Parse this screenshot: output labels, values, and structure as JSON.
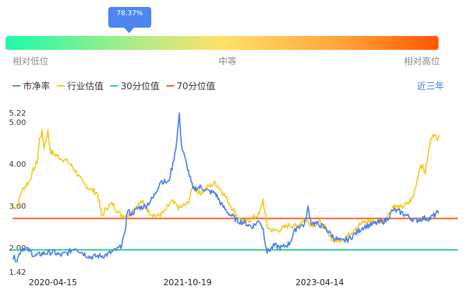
{
  "tooltip": {
    "value": "78.37%",
    "fraction": 0.7837
  },
  "gradient_bar": {
    "left_label": "相对低位",
    "mid_label": "中等",
    "right_label": "相对高位",
    "colors": [
      "#1dfaa6",
      "#ffe16a",
      "#ff5500"
    ]
  },
  "legend": {
    "items": [
      {
        "label": "市净率",
        "color": "#4a80ee"
      },
      {
        "label": "行业估值",
        "color": "#f7c91f"
      },
      {
        "label": "30分位值",
        "color": "#1dcf86"
      },
      {
        "label": "70分位值",
        "color": "#ff5514"
      }
    ]
  },
  "period": {
    "label": "近三年"
  },
  "chart_data": {
    "type": "line",
    "title": "",
    "xlabel": "",
    "ylabel": "",
    "x_range": [
      "2019-11-01",
      "2024-11-01"
    ],
    "x_ticks": [
      "2020-04-15",
      "2021-10-19",
      "2023-04-14"
    ],
    "y_ticks": [
      "1.42",
      "2.00",
      "3.00",
      "4.00",
      "5.00",
      "5.22"
    ],
    "ylim": [
      1.42,
      5.22
    ],
    "grid": false,
    "series": [
      {
        "name": "市净率",
        "color": "#4a80ee",
        "points": [
          [
            "2019-11-01",
            1.78
          ],
          [
            "2019-11-20",
            1.72
          ],
          [
            "2019-12-05",
            1.95
          ],
          [
            "2019-12-20",
            2.0
          ],
          [
            "2020-01-10",
            1.92
          ],
          [
            "2020-02-01",
            1.8
          ],
          [
            "2020-03-01",
            1.86
          ],
          [
            "2020-04-15",
            1.9
          ],
          [
            "2020-05-15",
            1.82
          ],
          [
            "2020-06-15",
            1.88
          ],
          [
            "2020-07-15",
            2.0
          ],
          [
            "2020-08-15",
            1.88
          ],
          [
            "2020-09-15",
            1.78
          ],
          [
            "2020-10-15",
            1.8
          ],
          [
            "2020-11-15",
            1.82
          ],
          [
            "2020-12-15",
            1.9
          ],
          [
            "2021-01-15",
            2.0
          ],
          [
            "2021-02-01",
            2.25
          ],
          [
            "2021-02-15",
            2.9
          ],
          [
            "2021-03-01",
            2.8
          ],
          [
            "2021-04-01",
            2.95
          ],
          [
            "2021-05-01",
            3.0
          ],
          [
            "2021-06-01",
            3.2
          ],
          [
            "2021-07-01",
            3.6
          ],
          [
            "2021-08-01",
            3.55
          ],
          [
            "2021-08-20",
            4.0
          ],
          [
            "2021-09-05",
            4.55
          ],
          [
            "2021-09-15",
            5.22
          ],
          [
            "2021-09-25",
            4.4
          ],
          [
            "2021-10-10",
            4.1
          ],
          [
            "2021-10-19",
            3.9
          ],
          [
            "2021-11-10",
            3.4
          ],
          [
            "2021-12-10",
            3.45
          ],
          [
            "2022-01-10",
            3.35
          ],
          [
            "2022-02-10",
            3.3
          ],
          [
            "2022-03-10",
            3.0
          ],
          [
            "2022-04-10",
            2.8
          ],
          [
            "2022-05-10",
            2.65
          ],
          [
            "2022-06-10",
            2.6
          ],
          [
            "2022-07-10",
            2.5
          ],
          [
            "2022-08-10",
            2.65
          ],
          [
            "2022-08-25",
            2.45
          ],
          [
            "2022-09-10",
            1.9
          ],
          [
            "2022-10-10",
            2.05
          ],
          [
            "2022-11-10",
            2.0
          ],
          [
            "2022-12-10",
            2.1
          ],
          [
            "2023-01-10",
            2.5
          ],
          [
            "2023-02-10",
            2.55
          ],
          [
            "2023-02-25",
            2.95
          ],
          [
            "2023-03-10",
            2.6
          ],
          [
            "2023-04-14",
            2.55
          ],
          [
            "2023-05-10",
            2.45
          ],
          [
            "2023-06-10",
            2.25
          ],
          [
            "2023-07-10",
            2.15
          ],
          [
            "2023-08-10",
            2.2
          ],
          [
            "2023-09-10",
            2.35
          ],
          [
            "2023-10-10",
            2.5
          ],
          [
            "2023-11-10",
            2.55
          ],
          [
            "2023-12-10",
            2.6
          ],
          [
            "2024-01-10",
            2.65
          ],
          [
            "2024-02-10",
            2.9
          ],
          [
            "2024-03-10",
            2.85
          ],
          [
            "2024-04-10",
            2.75
          ],
          [
            "2024-05-10",
            2.65
          ],
          [
            "2024-06-10",
            2.7
          ],
          [
            "2024-07-10",
            2.7
          ],
          [
            "2024-08-01",
            2.8
          ],
          [
            "2024-08-15",
            2.85
          ]
        ]
      },
      {
        "name": "行业估值",
        "color": "#f7c91f",
        "points": [
          [
            "2019-11-01",
            3.0
          ],
          [
            "2019-11-20",
            2.95
          ],
          [
            "2019-12-05",
            3.3
          ],
          [
            "2019-12-20",
            3.45
          ],
          [
            "2020-01-10",
            3.6
          ],
          [
            "2020-01-25",
            3.85
          ],
          [
            "2020-02-10",
            4.05
          ],
          [
            "2020-02-20",
            4.6
          ],
          [
            "2020-03-01",
            4.75
          ],
          [
            "2020-03-10",
            4.4
          ],
          [
            "2020-03-25",
            4.78
          ],
          [
            "2020-04-05",
            4.3
          ],
          [
            "2020-04-15",
            4.25
          ],
          [
            "2020-05-15",
            4.15
          ],
          [
            "2020-06-15",
            4.05
          ],
          [
            "2020-07-15",
            3.85
          ],
          [
            "2020-08-15",
            3.55
          ],
          [
            "2020-09-15",
            3.4
          ],
          [
            "2020-10-15",
            3.3
          ],
          [
            "2020-11-01",
            2.75
          ],
          [
            "2020-11-20",
            2.95
          ],
          [
            "2020-12-15",
            3.05
          ],
          [
            "2021-01-15",
            2.8
          ],
          [
            "2021-02-15",
            2.75
          ],
          [
            "2021-03-15",
            2.95
          ],
          [
            "2021-04-15",
            3.1
          ],
          [
            "2021-05-15",
            2.85
          ],
          [
            "2021-06-15",
            2.75
          ],
          [
            "2021-07-15",
            2.85
          ],
          [
            "2021-08-15",
            3.1
          ],
          [
            "2021-09-15",
            2.95
          ],
          [
            "2021-10-19",
            3.05
          ],
          [
            "2021-11-10",
            3.45
          ],
          [
            "2021-12-10",
            3.3
          ],
          [
            "2022-01-10",
            3.45
          ],
          [
            "2022-02-10",
            3.55
          ],
          [
            "2022-03-10",
            3.35
          ],
          [
            "2022-04-10",
            3.05
          ],
          [
            "2022-05-10",
            2.75
          ],
          [
            "2022-06-10",
            2.6
          ],
          [
            "2022-07-10",
            2.7
          ],
          [
            "2022-08-10",
            2.8
          ],
          [
            "2022-08-25",
            3.15
          ],
          [
            "2022-09-10",
            2.5
          ],
          [
            "2022-10-10",
            2.4
          ],
          [
            "2022-11-10",
            2.45
          ],
          [
            "2022-12-10",
            2.55
          ],
          [
            "2023-01-10",
            2.5
          ],
          [
            "2023-02-10",
            2.7
          ],
          [
            "2023-03-10",
            2.55
          ],
          [
            "2023-04-14",
            2.6
          ],
          [
            "2023-05-10",
            2.45
          ],
          [
            "2023-06-10",
            2.15
          ],
          [
            "2023-07-10",
            2.2
          ],
          [
            "2023-08-10",
            2.3
          ],
          [
            "2023-09-10",
            2.5
          ],
          [
            "2023-10-10",
            2.6
          ],
          [
            "2023-11-10",
            2.65
          ],
          [
            "2023-12-10",
            2.6
          ],
          [
            "2024-01-10",
            2.7
          ],
          [
            "2024-02-10",
            3.0
          ],
          [
            "2024-03-10",
            2.95
          ],
          [
            "2024-04-10",
            3.05
          ],
          [
            "2024-05-01",
            3.2
          ],
          [
            "2024-06-01",
            4.0
          ],
          [
            "2024-06-20",
            3.8
          ],
          [
            "2024-07-05",
            4.35
          ],
          [
            "2024-07-20",
            4.75
          ],
          [
            "2024-08-05",
            4.6
          ],
          [
            "2024-08-15",
            4.7
          ]
        ]
      },
      {
        "name": "30分位值",
        "color": "#1dcf86",
        "constant": 1.95
      },
      {
        "name": "70分位值",
        "color": "#ff5514",
        "constant": 2.7
      }
    ]
  }
}
